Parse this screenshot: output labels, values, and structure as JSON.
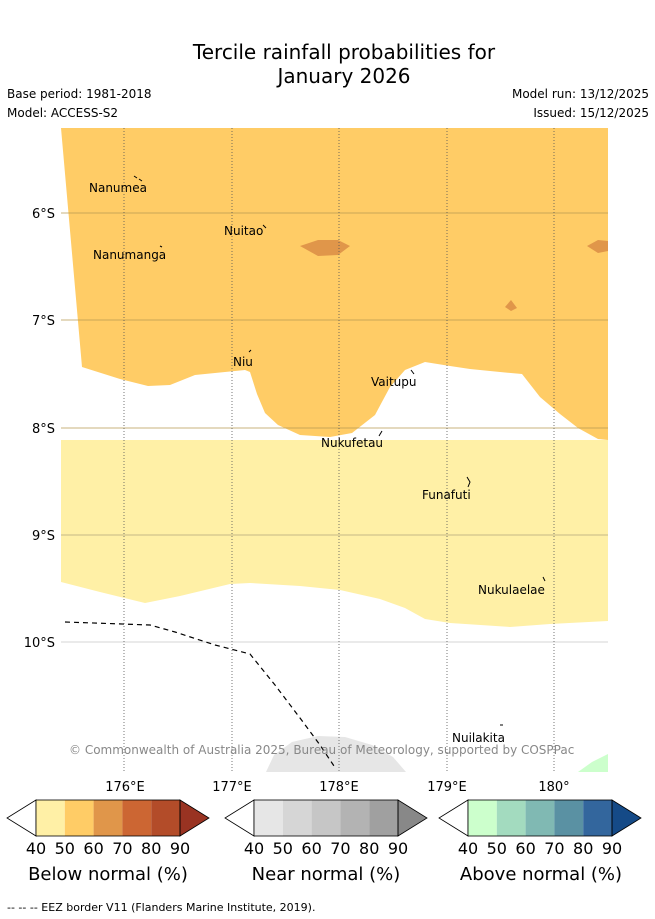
{
  "header": {
    "title_line1": "Tercile rainfall probabilities for",
    "title_line2": "January 2026",
    "base_period": "Base period: 1981-2018",
    "model": "Model: ACCESS-S2",
    "model_run": "Model run: 13/12/2025",
    "issued": "Issued: 15/12/2025"
  },
  "map": {
    "lat_labels": [
      "6°S",
      "7°S",
      "8°S",
      "9°S",
      "10°S"
    ],
    "lon_labels": [
      "176°E",
      "177°E",
      "178°E",
      "179°E",
      "180°"
    ],
    "places": {
      "nanumea": "Nanumea",
      "nuitao": "Nuitao",
      "nanumanga": "Nanumanga",
      "niu": "Niu",
      "vaitupu": "Vaitupu",
      "nukufetau": "Nukufetau",
      "funafuti": "Funafuti",
      "nukulaelae": "Nukulaelae",
      "nuilakita": "Nuilakita"
    },
    "copyright": "© Commonwealth of Australia 2025, Bureau of Meteorology, supported by COSPPac",
    "fill_colors": {
      "below_40": "#fff0a6",
      "below_50": "#ffcc66",
      "below_60": "#e0964a",
      "near_40": "#e6e6e6",
      "above_40": "#ccffcc"
    }
  },
  "legend": {
    "ticks": [
      "40",
      "50",
      "60",
      "70",
      "80",
      "90"
    ],
    "below": {
      "title": "Below normal (%)",
      "colors": [
        "#fff0a6",
        "#ffcc66",
        "#e0964a",
        "#cc6633",
        "#b34c29",
        "#993322"
      ]
    },
    "near": {
      "title": "Near normal (%)",
      "colors": [
        "#e6e6e6",
        "#d6d6d6",
        "#c6c6c6",
        "#b3b3b3",
        "#a0a0a0",
        "#888888"
      ]
    },
    "above": {
      "title": "Above normal (%)",
      "colors": [
        "#ccffcc",
        "#a3dbbf",
        "#80b9b3",
        "#5a91a3",
        "#33669d",
        "#154a87"
      ]
    }
  },
  "footer": {
    "eez_note": "-- -- -- EEZ border V11 (Flanders Marine Institute, 2019)."
  }
}
